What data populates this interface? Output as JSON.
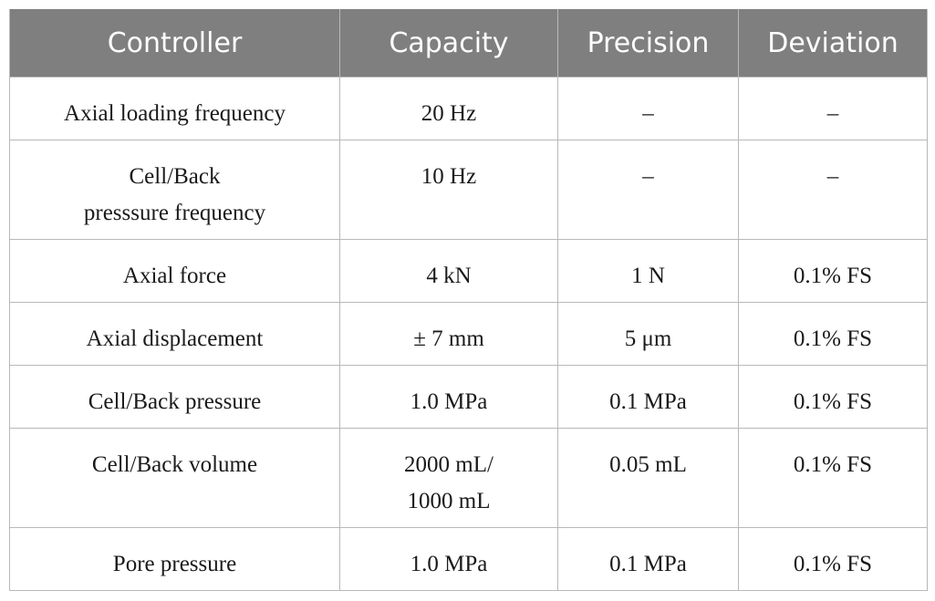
{
  "table": {
    "headers": [
      "Controller",
      "Capacity",
      "Precision",
      "Deviation"
    ],
    "rows": [
      {
        "controller": [
          "Axial loading frequency"
        ],
        "capacity": [
          "20 Hz"
        ],
        "precision": [
          "–"
        ],
        "deviation": [
          "–"
        ]
      },
      {
        "controller": [
          "Cell/Back",
          "presssure frequency"
        ],
        "capacity": [
          "10 Hz"
        ],
        "precision": [
          "–"
        ],
        "deviation": [
          "–"
        ]
      },
      {
        "controller": [
          "Axial force"
        ],
        "capacity": [
          "4 kN"
        ],
        "precision": [
          "1 N"
        ],
        "deviation": [
          "0.1% FS"
        ]
      },
      {
        "controller": [
          "Axial displacement"
        ],
        "capacity": [
          "± 7 mm"
        ],
        "precision": [
          "5 μm"
        ],
        "deviation": [
          "0.1% FS"
        ]
      },
      {
        "controller": [
          "Cell/Back pressure"
        ],
        "capacity": [
          "1.0 MPa"
        ],
        "precision": [
          "0.1 MPa"
        ],
        "deviation": [
          "0.1% FS"
        ]
      },
      {
        "controller": [
          "Cell/Back volume"
        ],
        "capacity": [
          "2000 mL/",
          "1000 mL"
        ],
        "precision": [
          "0.05 mL"
        ],
        "deviation": [
          "0.1% FS"
        ]
      },
      {
        "controller": [
          "Pore pressure"
        ],
        "capacity": [
          "1.0 MPa"
        ],
        "precision": [
          "0.1 MPa"
        ],
        "deviation": [
          "0.1% FS"
        ]
      }
    ]
  }
}
